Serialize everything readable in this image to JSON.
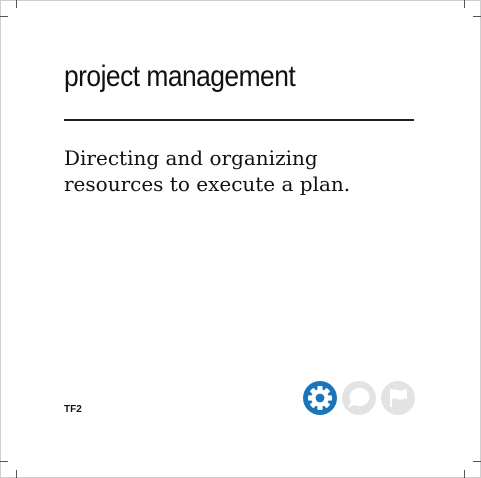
{
  "term": {
    "title": "project management",
    "definition": "Directing and organizing resources to execute a plan.",
    "code": "TF2"
  },
  "icons": [
    {
      "name": "gear-icon",
      "state": "active",
      "color": "#1b75bb"
    },
    {
      "name": "speech-bubble-icon",
      "state": "inactive",
      "color": "#e3e3e3"
    },
    {
      "name": "flag-icon",
      "state": "inactive",
      "color": "#e3e3e3"
    }
  ],
  "colors": {
    "accent": "#1b75bb",
    "inactive": "#e3e3e3",
    "text": "#111111"
  }
}
